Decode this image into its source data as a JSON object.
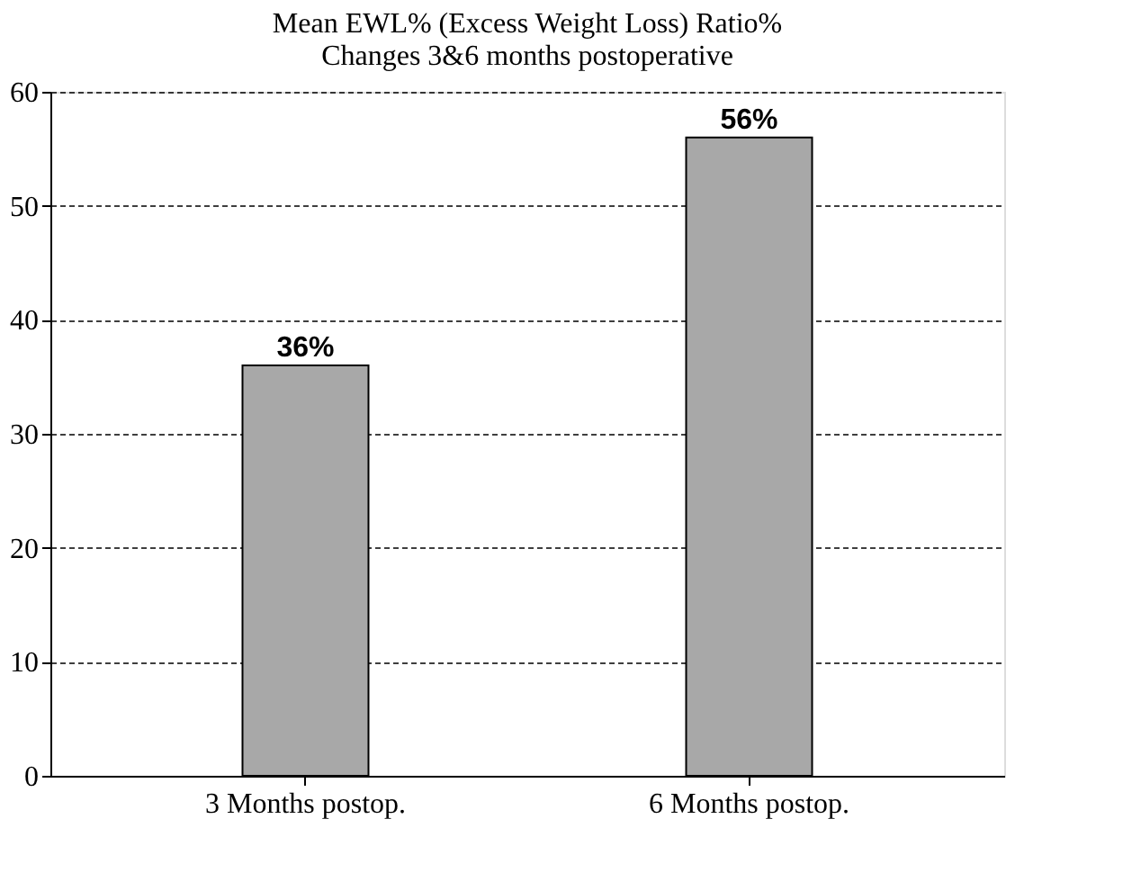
{
  "chart_data": {
    "type": "bar",
    "title": [
      "Mean EWL% (Excess Weight Loss) Ratio%",
      "Changes 3&6 months postoperative"
    ],
    "categories": [
      "3 Months postop.",
      "6 Months postop."
    ],
    "values": [
      36,
      56
    ],
    "value_labels": [
      "36%",
      "56%"
    ],
    "color": "#a8a8a8",
    "ylim": [
      0,
      60
    ],
    "yticks": [
      0,
      10,
      20,
      30,
      40,
      50,
      60
    ],
    "grid": "y"
  }
}
